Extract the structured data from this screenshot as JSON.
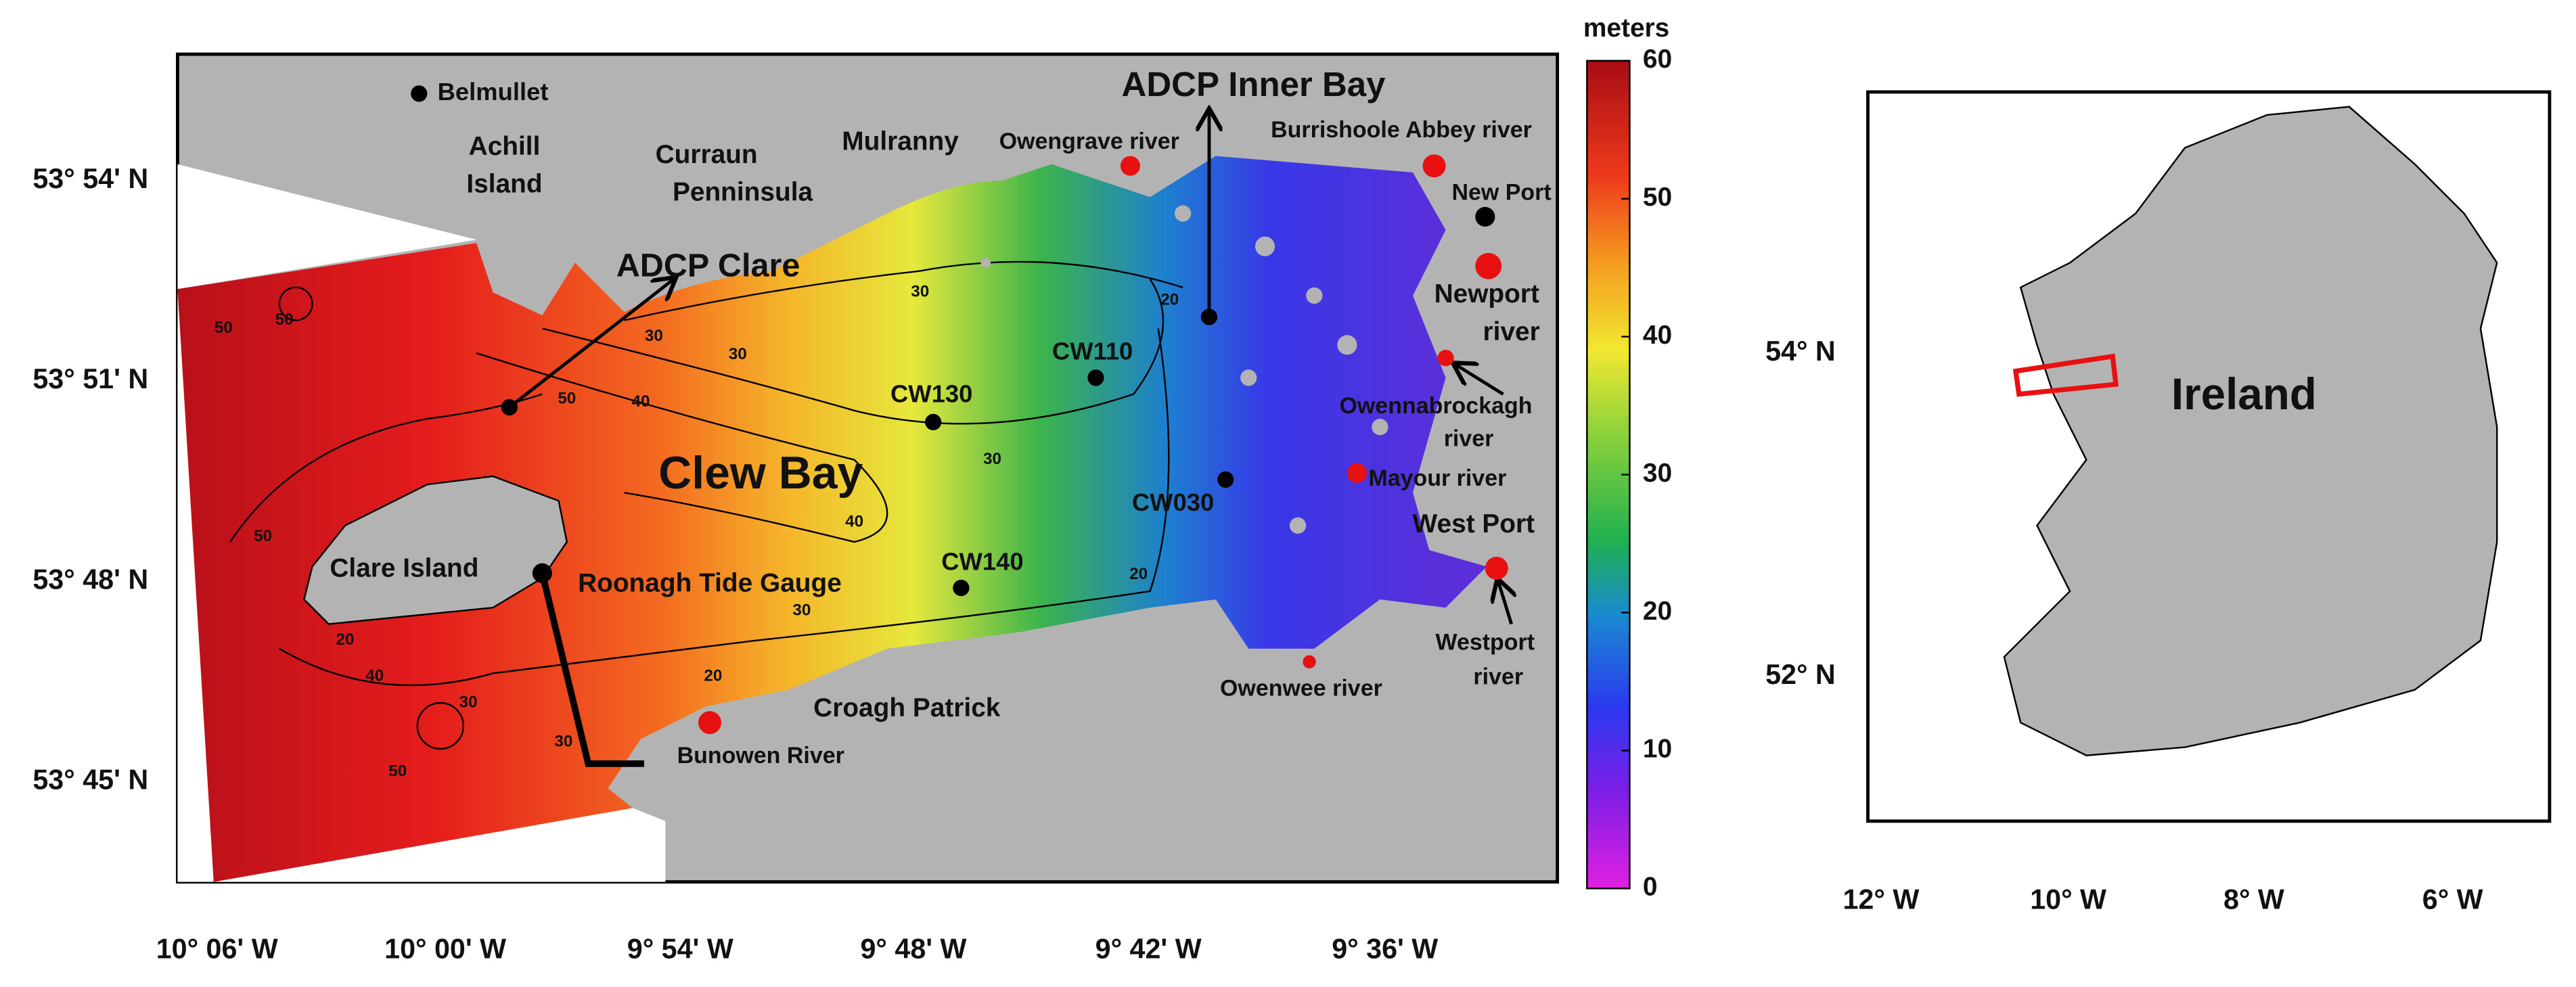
{
  "main_map": {
    "lat_labels": [
      "53° 54' N",
      "53° 51' N",
      "53° 48' N",
      "53° 45' N"
    ],
    "lon_labels": [
      "10° 06' W",
      "10° 00' W",
      "9° 54' W",
      "9° 48' W",
      "9° 42' W",
      "9° 36' W"
    ],
    "places": [
      "Belmullet",
      "Achill",
      "Island",
      "Curraun",
      "Penninsula",
      "Mulranny",
      "Owengrave river",
      "ADCP Inner Bay",
      "Burrishoole Abbey river",
      "New Port",
      "Newport",
      "river",
      "ADCP Clare",
      "CW110",
      "CW130",
      "Owennabrockagh",
      "river",
      "Clew Bay",
      "Mayour river",
      "CW030",
      "West Port",
      "CW140",
      "Clare Island",
      "Roonagh Tide Gauge",
      "Westport",
      "river",
      "Owenwee river",
      "Croagh Patrick",
      "Bunowen River"
    ],
    "contour_labels": [
      "50",
      "50",
      "50",
      "40",
      "30",
      "30",
      "20",
      "30",
      "40",
      "30",
      "20",
      "30",
      "20",
      "40",
      "20",
      "30",
      "30",
      "50",
      "50"
    ]
  },
  "colorbar": {
    "unit": "meters",
    "lim": [
      0,
      60
    ],
    "ticks": [
      0,
      10,
      20,
      30,
      40,
      50,
      60
    ]
  },
  "inset": {
    "label": "Ireland",
    "lat_labels": [
      "54° N",
      "52° N"
    ],
    "lon_labels": [
      "12° W",
      "10° W",
      "8° W",
      "6° W"
    ]
  }
}
